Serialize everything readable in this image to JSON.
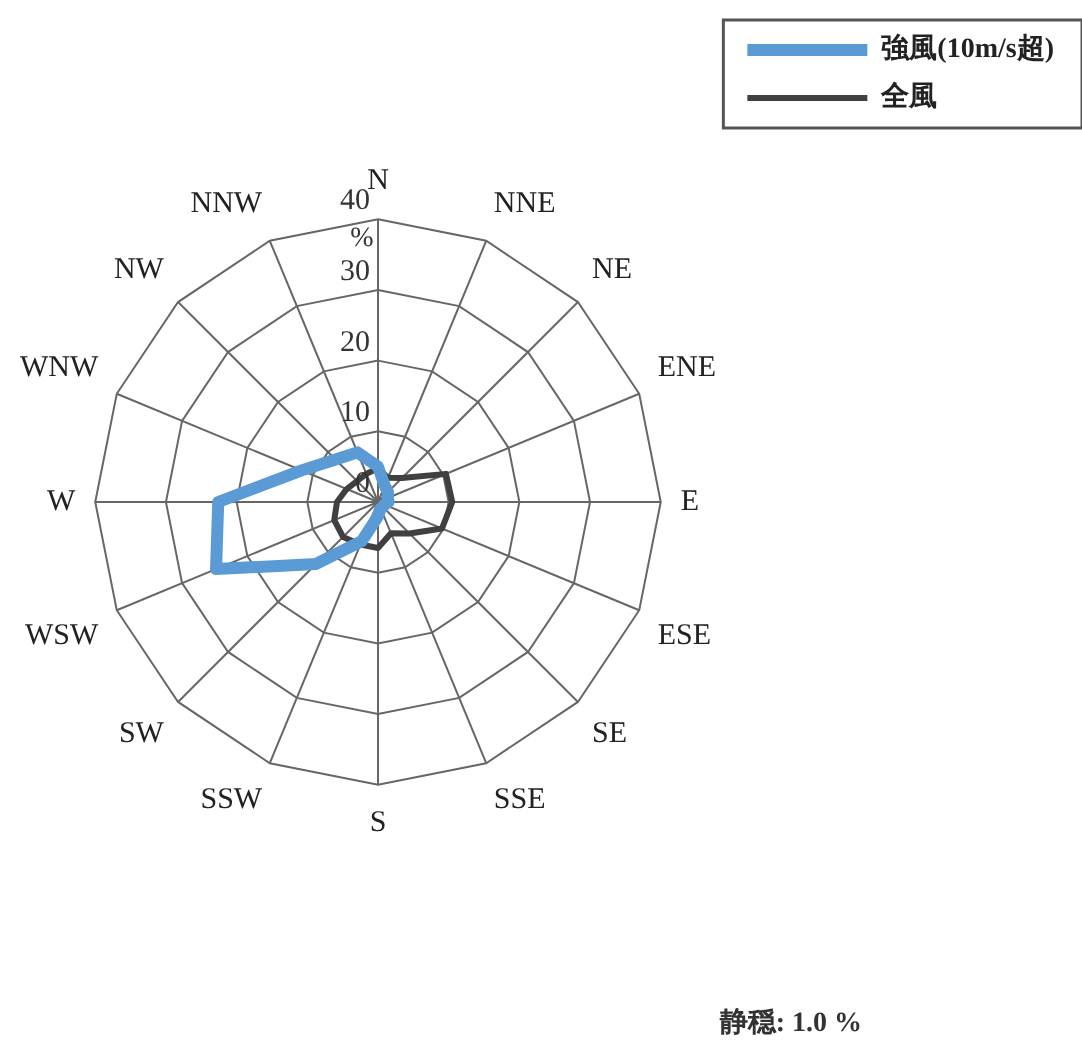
{
  "chart_data": {
    "type": "radar",
    "categories": [
      "N",
      "NNE",
      "NE",
      "ENE",
      "E",
      "ESE",
      "SE",
      "SSE",
      "S",
      "SSW",
      "SW",
      "WSW",
      "W",
      "WNW",
      "NW",
      "NNW"
    ],
    "series": [
      {
        "name": "強風(10m/s超)",
        "color": "#5b9bd5",
        "values": [
          5,
          2.5,
          2,
          1.5,
          1.5,
          1,
          1,
          1,
          2,
          6,
          12.4,
          24.8,
          22.6,
          11.7,
          8.5,
          7.6
        ]
      },
      {
        "name": "全風",
        "color": "#404040",
        "values": [
          4.8,
          3.7,
          4.8,
          10.4,
          10.5,
          9.8,
          6.3,
          4.8,
          6.5,
          6.5,
          7,
          6.7,
          5.8,
          4.8,
          4.2,
          4.3
        ]
      }
    ],
    "ylim": [
      0,
      40
    ],
    "yticks": [
      0,
      10,
      20,
      30,
      40
    ],
    "ylabel": "%",
    "legend": "top right",
    "grid": true,
    "marker": "none",
    "line_style": "solid",
    "annotations": [
      "静穏: 1.0 %"
    ]
  }
}
